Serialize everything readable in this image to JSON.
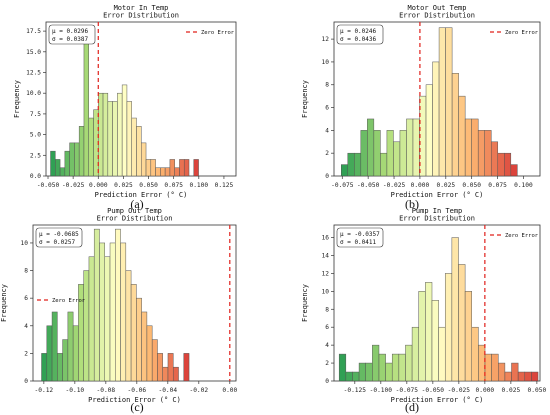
{
  "figure": {
    "captions": [
      "(a)",
      "(b)",
      "(c)",
      "(d)"
    ]
  },
  "chart_data": [
    {
      "type": "bar",
      "title": "Motor In Temp\nError Distribution",
      "xlabel": "Prediction Error (° C)",
      "ylabel": "Frequency",
      "legend": "Zero Error",
      "legend_position": "top-right",
      "stats": [
        "μ = 0.0296",
        "σ = 0.0387"
      ],
      "zero_line": 0,
      "xlim": [
        -0.052,
        0.137
      ],
      "ylim": [
        0,
        18.6
      ],
      "xticks": [
        -0.05,
        -0.025,
        0.0,
        0.025,
        0.05,
        0.075,
        0.1,
        0.125
      ],
      "xticklabels": [
        "-0.050",
        "-0.025",
        "0.000",
        "0.025",
        "0.050",
        "0.075",
        "0.100",
        "0.125"
      ],
      "yticks": [
        0,
        2.5,
        5.0,
        7.5,
        10.0,
        12.5,
        15.0,
        17.5
      ],
      "yticklabels": [
        "0.0",
        "2.5",
        "5.0",
        "7.5",
        "10.0",
        "12.5",
        "15.0",
        "17.5"
      ],
      "bin_start": -0.0475,
      "bin_width": 0.00475,
      "values": [
        3,
        2,
        1,
        3,
        4,
        4,
        6,
        18,
        7,
        8,
        10,
        10,
        9,
        9,
        10,
        11,
        9,
        7,
        6,
        4,
        2,
        2,
        1,
        1,
        1,
        2,
        1,
        2,
        2,
        0,
        2
      ]
    },
    {
      "type": "bar",
      "title": "Motor Out Temp\nError Distribution",
      "xlabel": "Prediction Error (° C)",
      "ylabel": "Frequency",
      "legend": "Zero Error",
      "legend_position": "top-right",
      "stats": [
        "μ = 0.0246",
        "σ = 0.0436"
      ],
      "zero_line": 0,
      "xlim": [
        -0.083,
        0.116
      ],
      "ylim": [
        0,
        13.5
      ],
      "xticks": [
        -0.075,
        -0.05,
        -0.025,
        0.0,
        0.025,
        0.05,
        0.075,
        0.1
      ],
      "xticklabels": [
        "-0.075",
        "-0.050",
        "-0.025",
        "0.000",
        "0.025",
        "0.050",
        "0.075",
        "0.100"
      ],
      "yticks": [
        0,
        2,
        4,
        6,
        8,
        10,
        12
      ],
      "yticklabels": [
        "0",
        "2",
        "4",
        "6",
        "8",
        "10",
        "12"
      ],
      "bin_start": -0.076,
      "bin_width": 0.0063,
      "values": [
        1,
        2,
        2,
        4,
        5,
        4,
        2,
        4,
        3,
        4,
        5,
        5,
        7,
        8,
        10,
        13,
        13,
        9,
        7,
        5,
        5,
        4,
        4,
        3,
        2,
        2,
        1
      ]
    },
    {
      "type": "bar",
      "title": "Pump Out Temp\nError Distribution",
      "xlabel": "Prediction Error (° C)",
      "ylabel": "Frequency",
      "legend": "Zero Error",
      "legend_position": "left",
      "stats": [
        "μ = -0.0685",
        "σ = 0.0257"
      ],
      "zero_line": 0,
      "xlim": [
        -0.127,
        0.004
      ],
      "ylim": [
        0,
        11.3
      ],
      "xticks": [
        -0.12,
        -0.1,
        -0.08,
        -0.06,
        -0.04,
        -0.02,
        0.0
      ],
      "xticklabels": [
        "-0.12",
        "-0.10",
        "-0.08",
        "-0.06",
        "-0.04",
        "-0.02",
        "0.00"
      ],
      "yticks": [
        0,
        2,
        4,
        6,
        8,
        10
      ],
      "yticklabels": [
        "0",
        "2",
        "4",
        "6",
        "8",
        "10"
      ],
      "bin_start": -0.1215,
      "bin_width": 0.0034,
      "values": [
        2,
        4,
        5,
        2,
        3,
        5,
        4,
        7,
        8,
        9,
        11,
        10,
        9,
        10,
        11,
        10,
        8,
        7,
        6,
        5,
        4,
        3,
        2,
        1,
        2,
        1,
        0,
        2
      ]
    },
    {
      "type": "bar",
      "title": "Pump In Temp\nError Distribution",
      "xlabel": "Prediction Error (° C)",
      "ylabel": "Frequency",
      "legend": "Zero Error",
      "legend_position": "top-right",
      "stats": [
        "μ = -0.0357",
        "σ = 0.0411"
      ],
      "zero_line": 0,
      "xlim": [
        -0.145,
        0.053
      ],
      "ylim": [
        0,
        17.4
      ],
      "xticks": [
        -0.125,
        -0.1,
        -0.075,
        -0.05,
        -0.025,
        0.0,
        0.025,
        0.05
      ],
      "xticklabels": [
        "-0.125",
        "-0.100",
        "-0.075",
        "-0.050",
        "-0.025",
        "0.000",
        "0.025",
        "0.050"
      ],
      "yticks": [
        0,
        2,
        4,
        6,
        8,
        10,
        12,
        14,
        16
      ],
      "yticklabels": [
        "0",
        "2",
        "4",
        "6",
        "8",
        "10",
        "12",
        "14",
        "16"
      ],
      "bin_start": -0.14,
      "bin_width": 0.00637,
      "values": [
        3,
        1,
        1,
        2,
        2,
        4,
        3,
        2,
        3,
        3,
        4,
        6,
        10,
        11,
        9,
        6,
        12,
        16,
        13,
        10,
        6,
        4,
        3,
        3,
        2,
        1,
        2,
        1,
        1,
        1
      ]
    }
  ]
}
